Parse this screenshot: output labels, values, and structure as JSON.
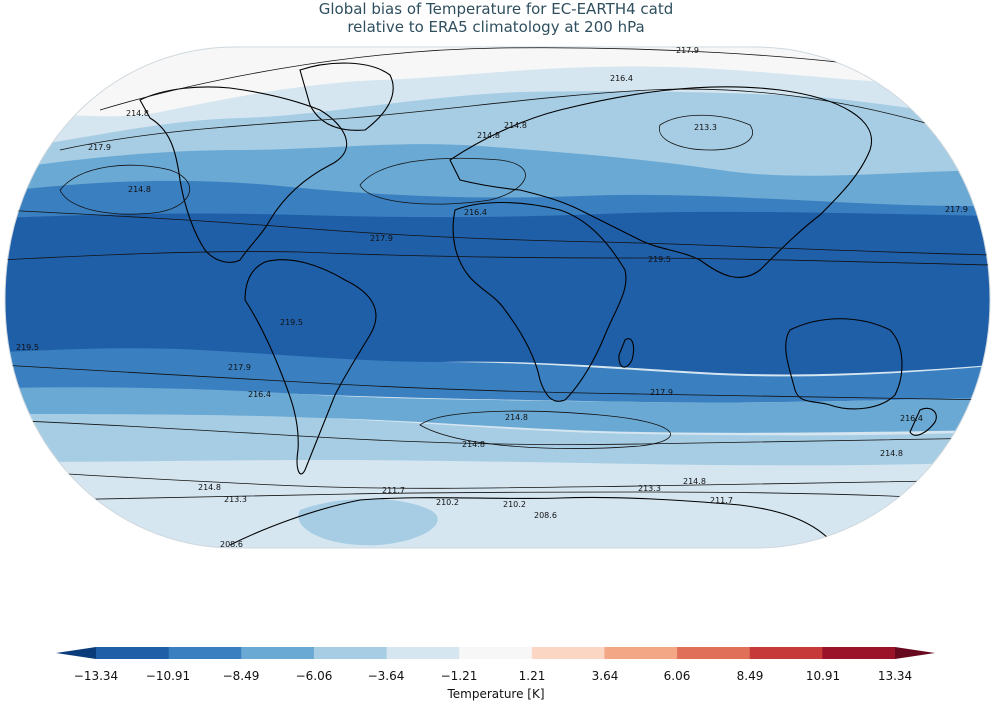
{
  "title": {
    "line1": "Global bias of Temperature for EC-EARTH4 catd",
    "line2": "relative to ERA5 climatology at 200 hPa"
  },
  "colorbar": {
    "label": "Temperature [K]",
    "ticks": [
      "−13.34",
      "−10.91",
      "−8.49",
      "−6.06",
      "−3.64",
      "−1.21",
      "1.21",
      "3.64",
      "6.06",
      "8.49",
      "10.91",
      "13.34"
    ],
    "colors": [
      "#0b3c7a",
      "#1f5fa8",
      "#3a7fc0",
      "#6aa9d4",
      "#a6cde4",
      "#d5e6f1",
      "#f7f7f7",
      "#fbd6c3",
      "#f3a785",
      "#e07058",
      "#c63b3a",
      "#9a1328",
      "#670a1f"
    ]
  },
  "map": {
    "projection": "Robinson",
    "bands": {
      "darkest": "#1f5fa8",
      "dark": "#3a7fc0",
      "mid": "#6aa9d4",
      "light": "#a6cde4",
      "lighter": "#d5e6f1",
      "white": "#f7f7f7"
    },
    "contour_labels": [
      "217.9",
      "216.4",
      "213.3",
      "214.8",
      "214.8",
      "217.9",
      "214.8",
      "216.4",
      "219.5",
      "217.9",
      "219.5",
      "219.5",
      "217.9",
      "216.4",
      "217.9",
      "214.8",
      "214.8",
      "216.4",
      "214.8",
      "214.8",
      "214.8",
      "213.3",
      "211.7",
      "213.3",
      "210.2",
      "210.2",
      "208.6",
      "211.7",
      "208.6",
      "217.9",
      "214.8"
    ]
  }
}
